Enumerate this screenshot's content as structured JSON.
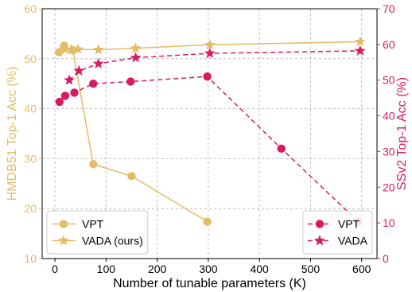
{
  "chart_data": {
    "type": "line",
    "xlabel": "Number of tunable parameters (K)",
    "xlim": [
      -25,
      630
    ],
    "xticks": [
      0,
      100,
      200,
      300,
      400,
      500,
      600
    ],
    "left_axis": {
      "label": "HMDB51 Top-1 Acc (%)",
      "ylim": [
        10,
        60
      ],
      "ticks": [
        10,
        20,
        30,
        40,
        50,
        60
      ],
      "color": "#E3BC65"
    },
    "right_axis": {
      "label": "SSv2 Top-1 Acc (%)",
      "ylim": [
        0,
        70
      ],
      "ticks": [
        0,
        10,
        20,
        30,
        40,
        50,
        60,
        70
      ],
      "color": "#D81B60"
    },
    "grid": true,
    "series": [
      {
        "name": "VPT",
        "axis": "left",
        "marker": "circle",
        "linestyle": "solid",
        "color": "#E3BC65",
        "x": [
          8,
          18,
          35,
          75,
          150,
          298
        ],
        "y": [
          51.3,
          52.6,
          51.7,
          28.9,
          26.5,
          17.4
        ]
      },
      {
        "name": "VADA (ours)",
        "axis": "left",
        "marker": "star",
        "linestyle": "solid",
        "color": "#E3BC65",
        "x": [
          20,
          32,
          45,
          85,
          158,
          303,
          597
        ],
        "y": [
          51.9,
          51.8,
          51.9,
          51.8,
          52.1,
          52.8,
          53.4
        ]
      },
      {
        "name": "VPT",
        "axis": "right",
        "marker": "circle",
        "linestyle": "dashed",
        "color": "#D81B60",
        "x": [
          9,
          20,
          38,
          75,
          148,
          298,
          443,
          593
        ],
        "y": [
          43.9,
          45.6,
          46.5,
          49.0,
          49.6,
          51.0,
          30.8,
          10.4
        ]
      },
      {
        "name": "VADA",
        "axis": "right",
        "marker": "star",
        "linestyle": "dashed",
        "color": "#D81B60",
        "x": [
          28,
          47,
          85,
          158,
          303,
          597
        ],
        "y": [
          50.0,
          52.6,
          54.6,
          56.3,
          57.5,
          58.2
        ]
      }
    ],
    "legends": [
      {
        "placement": "lower-left",
        "entries": [
          "VPT",
          "VADA (ours)"
        ]
      },
      {
        "placement": "lower-right",
        "entries": [
          "VPT",
          "VADA"
        ]
      }
    ]
  }
}
